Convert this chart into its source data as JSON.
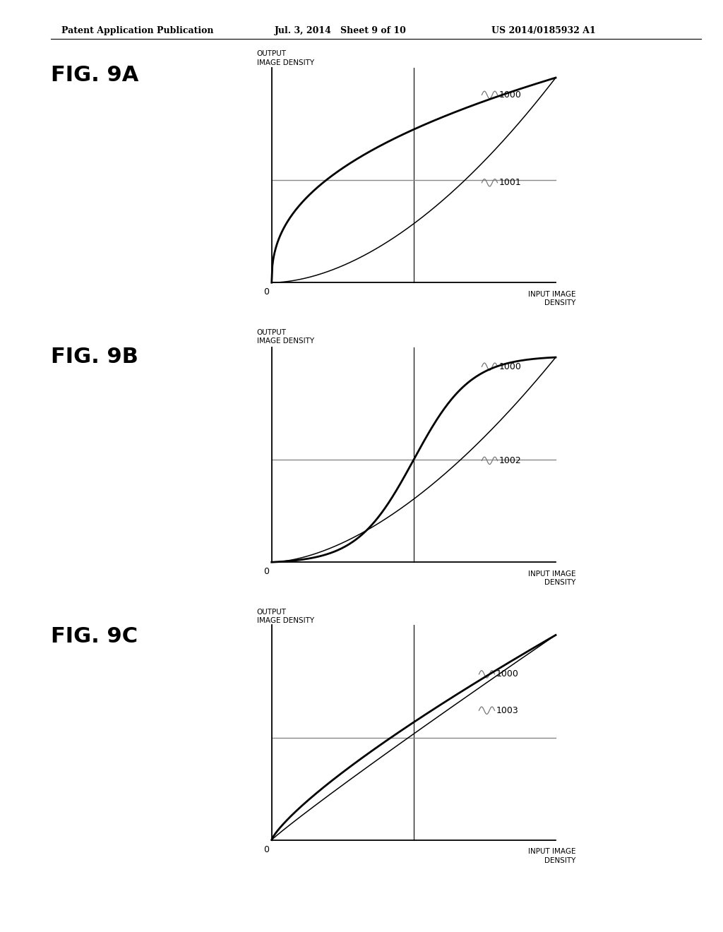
{
  "header_left": "Patent Application Publication",
  "header_mid": "Jul. 3, 2014   Sheet 9 of 10",
  "header_right": "US 2014/0185932 A1",
  "bg_color": "#ffffff",
  "fig_label_fontsize": 22,
  "header_fontsize": 9,
  "axis_label_fontsize": 7.5,
  "curve_label_fontsize": 9,
  "panels": [
    {
      "fig_label": "FIG. 9A",
      "c1_label": "1000",
      "c2_label": "1001"
    },
    {
      "fig_label": "FIG. 9B",
      "c1_label": "1000",
      "c2_label": "1002"
    },
    {
      "fig_label": "FIG. 9C",
      "c1_label": "1000",
      "c2_label": "1003"
    }
  ]
}
